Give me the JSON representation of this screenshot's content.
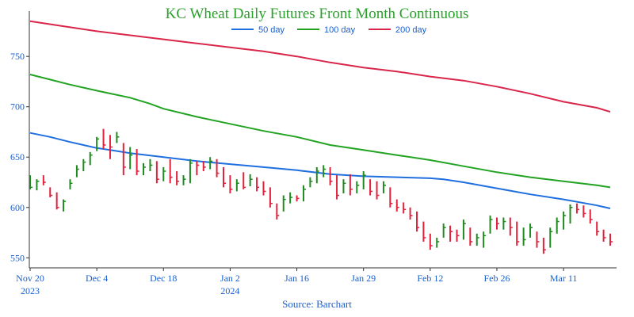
{
  "colors": {
    "title": "#2ca02c",
    "axis_text": "#1a5fd0",
    "up": "#1f8a1f",
    "down": "#e0223c",
    "ma50": "#1f6fe0",
    "ma100": "#22a322",
    "ma200": "#d9264a",
    "axis": "#333333"
  },
  "chart_data": {
    "type": "ohlc",
    "title": "KC Wheat Daily Futures Front Month Continuous",
    "source": "Source: Barchart",
    "ylim": [
      540,
      795
    ],
    "yticks": [
      550,
      600,
      650,
      700,
      750
    ],
    "legend": {
      "placement": "top-center",
      "entries": [
        "50 day",
        "100 day",
        "200 day"
      ]
    },
    "x_ticks": [
      {
        "label": "Nov 20",
        "year": "2023",
        "index": 0
      },
      {
        "label": "Dec 4",
        "year": "",
        "index": 10
      },
      {
        "label": "Dec 18",
        "year": "",
        "index": 20
      },
      {
        "label": "Jan 2",
        "year": "2024",
        "index": 30
      },
      {
        "label": "Jan 16",
        "year": "",
        "index": 40
      },
      {
        "label": "Jan 29",
        "year": "",
        "index": 50
      },
      {
        "label": "Feb 12",
        "year": "",
        "index": 60
      },
      {
        "label": "Feb 26",
        "year": "",
        "index": 70
      },
      {
        "label": "Mar 11",
        "year": "",
        "index": 80
      }
    ],
    "n_bars": 88,
    "bars": [
      {
        "h": 632,
        "l": 618,
        "c": 620
      },
      {
        "h": 628,
        "l": 617,
        "c": 626
      },
      {
        "h": 632,
        "l": 622,
        "c": 625
      },
      {
        "h": 620,
        "l": 610,
        "c": 612
      },
      {
        "h": 615,
        "l": 598,
        "c": 600
      },
      {
        "h": 608,
        "l": 596,
        "c": 606
      },
      {
        "h": 628,
        "l": 618,
        "c": 624
      },
      {
        "h": 642,
        "l": 630,
        "c": 638
      },
      {
        "h": 648,
        "l": 636,
        "c": 645
      },
      {
        "h": 655,
        "l": 642,
        "c": 652
      },
      {
        "h": 670,
        "l": 656,
        "c": 668
      },
      {
        "h": 678,
        "l": 658,
        "c": 662
      },
      {
        "h": 672,
        "l": 648,
        "c": 660
      },
      {
        "h": 675,
        "l": 664,
        "c": 670
      },
      {
        "h": 664,
        "l": 632,
        "c": 640
      },
      {
        "h": 660,
        "l": 638,
        "c": 652
      },
      {
        "h": 658,
        "l": 632,
        "c": 636
      },
      {
        "h": 644,
        "l": 632,
        "c": 640
      },
      {
        "h": 648,
        "l": 636,
        "c": 642
      },
      {
        "h": 646,
        "l": 624,
        "c": 628
      },
      {
        "h": 640,
        "l": 626,
        "c": 636
      },
      {
        "h": 648,
        "l": 624,
        "c": 630
      },
      {
        "h": 636,
        "l": 622,
        "c": 626
      },
      {
        "h": 632,
        "l": 622,
        "c": 628
      },
      {
        "h": 648,
        "l": 624,
        "c": 644
      },
      {
        "h": 646,
        "l": 632,
        "c": 642
      },
      {
        "h": 646,
        "l": 636,
        "c": 640
      },
      {
        "h": 650,
        "l": 638,
        "c": 646
      },
      {
        "h": 648,
        "l": 630,
        "c": 634
      },
      {
        "h": 640,
        "l": 620,
        "c": 624
      },
      {
        "h": 632,
        "l": 614,
        "c": 618
      },
      {
        "h": 628,
        "l": 616,
        "c": 624
      },
      {
        "h": 635,
        "l": 618,
        "c": 620
      },
      {
        "h": 633,
        "l": 621,
        "c": 628
      },
      {
        "h": 630,
        "l": 616,
        "c": 620
      },
      {
        "h": 626,
        "l": 612,
        "c": 616
      },
      {
        "h": 620,
        "l": 600,
        "c": 604
      },
      {
        "h": 604,
        "l": 588,
        "c": 592
      },
      {
        "h": 612,
        "l": 596,
        "c": 608
      },
      {
        "h": 615,
        "l": 604,
        "c": 610
      },
      {
        "h": 612,
        "l": 606,
        "c": 609
      },
      {
        "h": 622,
        "l": 606,
        "c": 618
      },
      {
        "h": 630,
        "l": 620,
        "c": 626
      },
      {
        "h": 640,
        "l": 624,
        "c": 636
      },
      {
        "h": 642,
        "l": 630,
        "c": 638
      },
      {
        "h": 640,
        "l": 622,
        "c": 626
      },
      {
        "h": 632,
        "l": 608,
        "c": 612
      },
      {
        "h": 628,
        "l": 614,
        "c": 624
      },
      {
        "h": 633,
        "l": 612,
        "c": 618
      },
      {
        "h": 626,
        "l": 614,
        "c": 622
      },
      {
        "h": 636,
        "l": 618,
        "c": 632
      },
      {
        "h": 628,
        "l": 612,
        "c": 616
      },
      {
        "h": 626,
        "l": 608,
        "c": 612
      },
      {
        "h": 626,
        "l": 614,
        "c": 622
      },
      {
        "h": 620,
        "l": 600,
        "c": 604
      },
      {
        "h": 608,
        "l": 596,
        "c": 600
      },
      {
        "h": 605,
        "l": 594,
        "c": 598
      },
      {
        "h": 600,
        "l": 588,
        "c": 592
      },
      {
        "h": 596,
        "l": 576,
        "c": 580
      },
      {
        "h": 586,
        "l": 566,
        "c": 570
      },
      {
        "h": 574,
        "l": 558,
        "c": 562
      },
      {
        "h": 570,
        "l": 560,
        "c": 566
      },
      {
        "h": 584,
        "l": 570,
        "c": 580
      },
      {
        "h": 582,
        "l": 566,
        "c": 576
      },
      {
        "h": 578,
        "l": 566,
        "c": 572
      },
      {
        "h": 588,
        "l": 568,
        "c": 584
      },
      {
        "h": 580,
        "l": 562,
        "c": 566
      },
      {
        "h": 574,
        "l": 562,
        "c": 570
      },
      {
        "h": 576,
        "l": 560,
        "c": 572
      },
      {
        "h": 592,
        "l": 574,
        "c": 588
      },
      {
        "h": 590,
        "l": 578,
        "c": 584
      },
      {
        "h": 590,
        "l": 578,
        "c": 586
      },
      {
        "h": 590,
        "l": 572,
        "c": 580
      },
      {
        "h": 586,
        "l": 562,
        "c": 566
      },
      {
        "h": 580,
        "l": 562,
        "c": 568
      },
      {
        "h": 584,
        "l": 570,
        "c": 580
      },
      {
        "h": 576,
        "l": 560,
        "c": 566
      },
      {
        "h": 570,
        "l": 554,
        "c": 558
      },
      {
        "h": 580,
        "l": 560,
        "c": 576
      },
      {
        "h": 590,
        "l": 574,
        "c": 586
      },
      {
        "h": 596,
        "l": 578,
        "c": 592
      },
      {
        "h": 603,
        "l": 584,
        "c": 600
      },
      {
        "h": 604,
        "l": 594,
        "c": 598
      },
      {
        "h": 602,
        "l": 590,
        "c": 594
      },
      {
        "h": 598,
        "l": 584,
        "c": 588
      },
      {
        "h": 586,
        "l": 572,
        "c": 576
      },
      {
        "h": 578,
        "l": 566,
        "c": 570
      },
      {
        "h": 574,
        "l": 562,
        "c": 566
      }
    ],
    "series": [
      {
        "name": "50 day",
        "points": [
          [
            0,
            674
          ],
          [
            3,
            670
          ],
          [
            6,
            665
          ],
          [
            8,
            662
          ],
          [
            10,
            659
          ],
          [
            12,
            657
          ],
          [
            15,
            654
          ],
          [
            20,
            650
          ],
          [
            25,
            646
          ],
          [
            30,
            643
          ],
          [
            35,
            640
          ],
          [
            40,
            637
          ],
          [
            45,
            633
          ],
          [
            50,
            631
          ],
          [
            55,
            630
          ],
          [
            60,
            629
          ],
          [
            62,
            628
          ],
          [
            65,
            625
          ],
          [
            70,
            619
          ],
          [
            75,
            613
          ],
          [
            80,
            608
          ],
          [
            85,
            602
          ],
          [
            87,
            599
          ]
        ]
      },
      {
        "name": "100 day",
        "points": [
          [
            0,
            732
          ],
          [
            3,
            727
          ],
          [
            6,
            722
          ],
          [
            10,
            716
          ],
          [
            15,
            709
          ],
          [
            18,
            703
          ],
          [
            20,
            698
          ],
          [
            25,
            690
          ],
          [
            30,
            683
          ],
          [
            35,
            676
          ],
          [
            40,
            670
          ],
          [
            45,
            662
          ],
          [
            50,
            657
          ],
          [
            55,
            652
          ],
          [
            60,
            647
          ],
          [
            65,
            641
          ],
          [
            70,
            635
          ],
          [
            75,
            630
          ],
          [
            80,
            626
          ],
          [
            85,
            622
          ],
          [
            87,
            620
          ]
        ]
      },
      {
        "name": "200 day",
        "points": [
          [
            0,
            785
          ],
          [
            5,
            780
          ],
          [
            10,
            775
          ],
          [
            15,
            771
          ],
          [
            20,
            767
          ],
          [
            25,
            763
          ],
          [
            30,
            759
          ],
          [
            35,
            755
          ],
          [
            40,
            750
          ],
          [
            45,
            744
          ],
          [
            50,
            739
          ],
          [
            55,
            735
          ],
          [
            60,
            730
          ],
          [
            65,
            726
          ],
          [
            70,
            720
          ],
          [
            75,
            713
          ],
          [
            80,
            705
          ],
          [
            85,
            699
          ],
          [
            87,
            695
          ]
        ]
      }
    ]
  }
}
